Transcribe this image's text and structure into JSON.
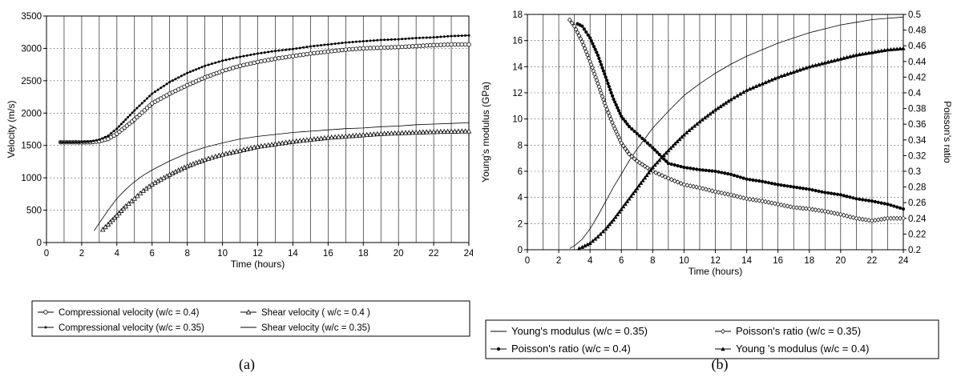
{
  "figures": [
    {
      "chart_data": {
        "type": "line",
        "panel_label": "(a)",
        "xlabel": "Time (hours)",
        "ylabel": "Velocity (m/s)",
        "xlim": [
          0,
          24
        ],
        "ylim": [
          0,
          3500
        ],
        "xticks": [
          0,
          2,
          4,
          6,
          8,
          10,
          12,
          14,
          16,
          18,
          20,
          22,
          24
        ],
        "yticks": [
          0,
          500,
          1000,
          1500,
          2000,
          2500,
          3000,
          3500
        ],
        "grid": "solid vertical lines every hour, dotted horizontal lines",
        "legend_position": "below",
        "series": [
          {
            "name": "Compressional velocity (w/c = 0.4)",
            "marker": "open-circle",
            "x": [
              0.8,
              1.5,
              2.0,
              2.5,
              3.0,
              3.5,
              4.0,
              5.0,
              6.0,
              7.0,
              8.0,
              9.0,
              10.0,
              11.0,
              12.0,
              13.0,
              14.0,
              15.0,
              16.0,
              17.0,
              18.0,
              19.0,
              20.0,
              21.0,
              22.0,
              23.0,
              24.0
            ],
            "y": [
              1550,
              1550,
              1548,
              1550,
              1565,
              1600,
              1680,
              1900,
              2150,
              2300,
              2430,
              2550,
              2650,
              2730,
              2790,
              2840,
              2880,
              2920,
              2950,
              2980,
              3000,
              3010,
              3020,
              3035,
              3050,
              3060,
              3060
            ]
          },
          {
            "name": "Shear velocity ( w/c = 0.4 )",
            "marker": "open-triangle",
            "x": [
              3.2,
              3.5,
              4.0,
              4.5,
              5.0,
              5.5,
              6.0,
              7.0,
              8.0,
              9.0,
              10.0,
              11.0,
              12.0,
              13.0,
              14.0,
              15.0,
              16.0,
              17.0,
              18.0,
              19.0,
              20.0,
              21.0,
              22.0,
              23.0,
              24.0
            ],
            "y": [
              200,
              280,
              420,
              560,
              680,
              800,
              900,
              1050,
              1180,
              1280,
              1360,
              1420,
              1480,
              1520,
              1560,
              1590,
              1620,
              1640,
              1660,
              1680,
              1690,
              1700,
              1710,
              1715,
              1720
            ]
          },
          {
            "name": "Compressional velocity (w/c = 0.35)",
            "marker": "dot",
            "x": [
              0.8,
              1.5,
              2.0,
              2.5,
              3.0,
              3.5,
              4.0,
              5.0,
              6.0,
              7.0,
              8.0,
              9.0,
              10.0,
              11.0,
              12.0,
              13.0,
              14.0,
              15.0,
              16.0,
              17.0,
              18.0,
              19.0,
              20.0,
              21.0,
              22.0,
              23.0,
              24.0
            ],
            "y": [
              1550,
              1550,
              1552,
              1560,
              1590,
              1650,
              1760,
              2040,
              2300,
              2480,
              2620,
              2730,
              2810,
              2870,
              2920,
              2960,
              2990,
              3030,
              3060,
              3090,
              3110,
              3130,
              3140,
              3160,
              3170,
              3190,
              3200
            ]
          },
          {
            "name": "Shear velocity (w/c = 0.35)",
            "marker": "none",
            "x": [
              2.7,
              3.0,
              3.5,
              4.0,
              4.5,
              5.0,
              5.5,
              6.0,
              7.0,
              8.0,
              9.0,
              10.0,
              11.0,
              12.0,
              13.0,
              14.0,
              15.0,
              16.0,
              17.0,
              18.0,
              19.0,
              20.0,
              21.0,
              22.0,
              23.0,
              24.0
            ],
            "y": [
              180,
              300,
              500,
              680,
              820,
              940,
              1040,
              1120,
              1260,
              1380,
              1470,
              1540,
              1600,
              1640,
              1670,
              1700,
              1720,
              1740,
              1760,
              1770,
              1790,
              1800,
              1820,
              1830,
              1840,
              1850
            ]
          }
        ]
      }
    },
    {
      "chart_data": {
        "type": "line",
        "panel_label": "(b)",
        "xlabel": "Time (hours)",
        "ylabel": "Young's modulus (GPa)",
        "y2label": "Poisson's ratio",
        "xlim": [
          0,
          24
        ],
        "ylim": [
          0,
          18
        ],
        "y2lim": [
          0.2,
          0.5
        ],
        "xticks": [
          0,
          2,
          4,
          6,
          8,
          10,
          12,
          14,
          16,
          18,
          20,
          22,
          24
        ],
        "yticks": [
          0,
          2,
          4,
          6,
          8,
          10,
          12,
          14,
          16,
          18
        ],
        "y2ticks": [
          0.2,
          0.22,
          0.24,
          0.26,
          0.28,
          0.3,
          0.32,
          0.34,
          0.36,
          0.38,
          0.4,
          0.42,
          0.44,
          0.46,
          0.48,
          0.5
        ],
        "y2ticklabels": [
          "0.2",
          "0.22",
          "0.24",
          "0.26",
          "0.28",
          "0.3",
          "0.32",
          "0.34",
          "0.36",
          "0.38",
          "0.4",
          "0.42",
          "0.44",
          "0.46",
          "0.48",
          "0.5"
        ],
        "grid": "solid vertical lines every hour, dotted horizontal lines",
        "legend_position": "below",
        "series": [
          {
            "name": "Young's modulus (w/c = 0.35)",
            "axis": "left",
            "marker": "none",
            "x": [
              2.7,
              3.0,
              3.5,
              4.0,
              4.5,
              5.0,
              5.5,
              6.0,
              6.5,
              7.0,
              8.0,
              9.0,
              10.0,
              11.0,
              12.0,
              13.0,
              14.0,
              15.0,
              16.0,
              17.0,
              18.0,
              19.0,
              20.0,
              21.0,
              22.0,
              23.0,
              24.0
            ],
            "y": [
              0.1,
              0.3,
              0.8,
              1.6,
              2.6,
              3.7,
              4.8,
              5.8,
              6.8,
              7.7,
              9.3,
              10.6,
              11.8,
              12.7,
              13.5,
              14.2,
              14.8,
              15.3,
              15.8,
              16.2,
              16.6,
              16.9,
              17.2,
              17.4,
              17.6,
              17.7,
              17.8
            ]
          },
          {
            "name": "Poisson's ratio (w/c = 0.35)",
            "axis": "right",
            "marker": "open-diamond",
            "x": [
              2.7,
              3.0,
              3.5,
              4.0,
              4.5,
              5.0,
              5.5,
              6.0,
              6.5,
              7.0,
              8.0,
              9.0,
              10.0,
              11.0,
              12.0,
              13.0,
              14.0,
              15.0,
              16.0,
              17.0,
              18.0,
              19.0,
              20.0,
              21.0,
              22.0,
              23.0,
              24.0
            ],
            "y": [
              0.493,
              0.485,
              0.465,
              0.44,
              0.412,
              0.383,
              0.358,
              0.336,
              0.322,
              0.313,
              0.3,
              0.291,
              0.283,
              0.279,
              0.274,
              0.27,
              0.265,
              0.262,
              0.258,
              0.254,
              0.252,
              0.249,
              0.245,
              0.24,
              0.237,
              0.24,
              0.24
            ]
          },
          {
            "name": "Poisson's ratio (w/c = 0.4)",
            "axis": "right",
            "marker": "filled-dot",
            "x": [
              3.2,
              3.5,
              4.0,
              4.5,
              5.0,
              5.5,
              6.0,
              6.5,
              7.0,
              8.0,
              9.0,
              10.0,
              11.0,
              12.0,
              13.0,
              14.0,
              15.0,
              16.0,
              17.0,
              18.0,
              19.0,
              20.0,
              21.0,
              22.0,
              23.0,
              24.0
            ],
            "y": [
              0.488,
              0.485,
              0.47,
              0.448,
              0.42,
              0.392,
              0.37,
              0.357,
              0.348,
              0.33,
              0.31,
              0.305,
              0.302,
              0.3,
              0.296,
              0.29,
              0.287,
              0.283,
              0.28,
              0.277,
              0.273,
              0.27,
              0.265,
              0.262,
              0.258,
              0.252
            ]
          },
          {
            "name": "Young 's modulus (w/c = 0.4)",
            "axis": "left",
            "marker": "filled-triangle",
            "x": [
              3.3,
              3.5,
              4.0,
              4.5,
              5.0,
              5.5,
              6.0,
              6.5,
              7.0,
              7.5,
              8.0,
              9.0,
              10.0,
              11.0,
              12.0,
              13.0,
              14.0,
              15.0,
              16.0,
              17.0,
              18.0,
              19.0,
              20.0,
              21.0,
              22.0,
              23.0,
              24.0
            ],
            "y": [
              0.1,
              0.2,
              0.5,
              1.0,
              1.6,
              2.3,
              3.1,
              3.9,
              4.7,
              5.5,
              6.3,
              7.6,
              8.8,
              9.8,
              10.7,
              11.5,
              12.2,
              12.7,
              13.2,
              13.6,
              14.0,
              14.3,
              14.6,
              14.9,
              15.1,
              15.3,
              15.4
            ]
          }
        ]
      }
    }
  ]
}
